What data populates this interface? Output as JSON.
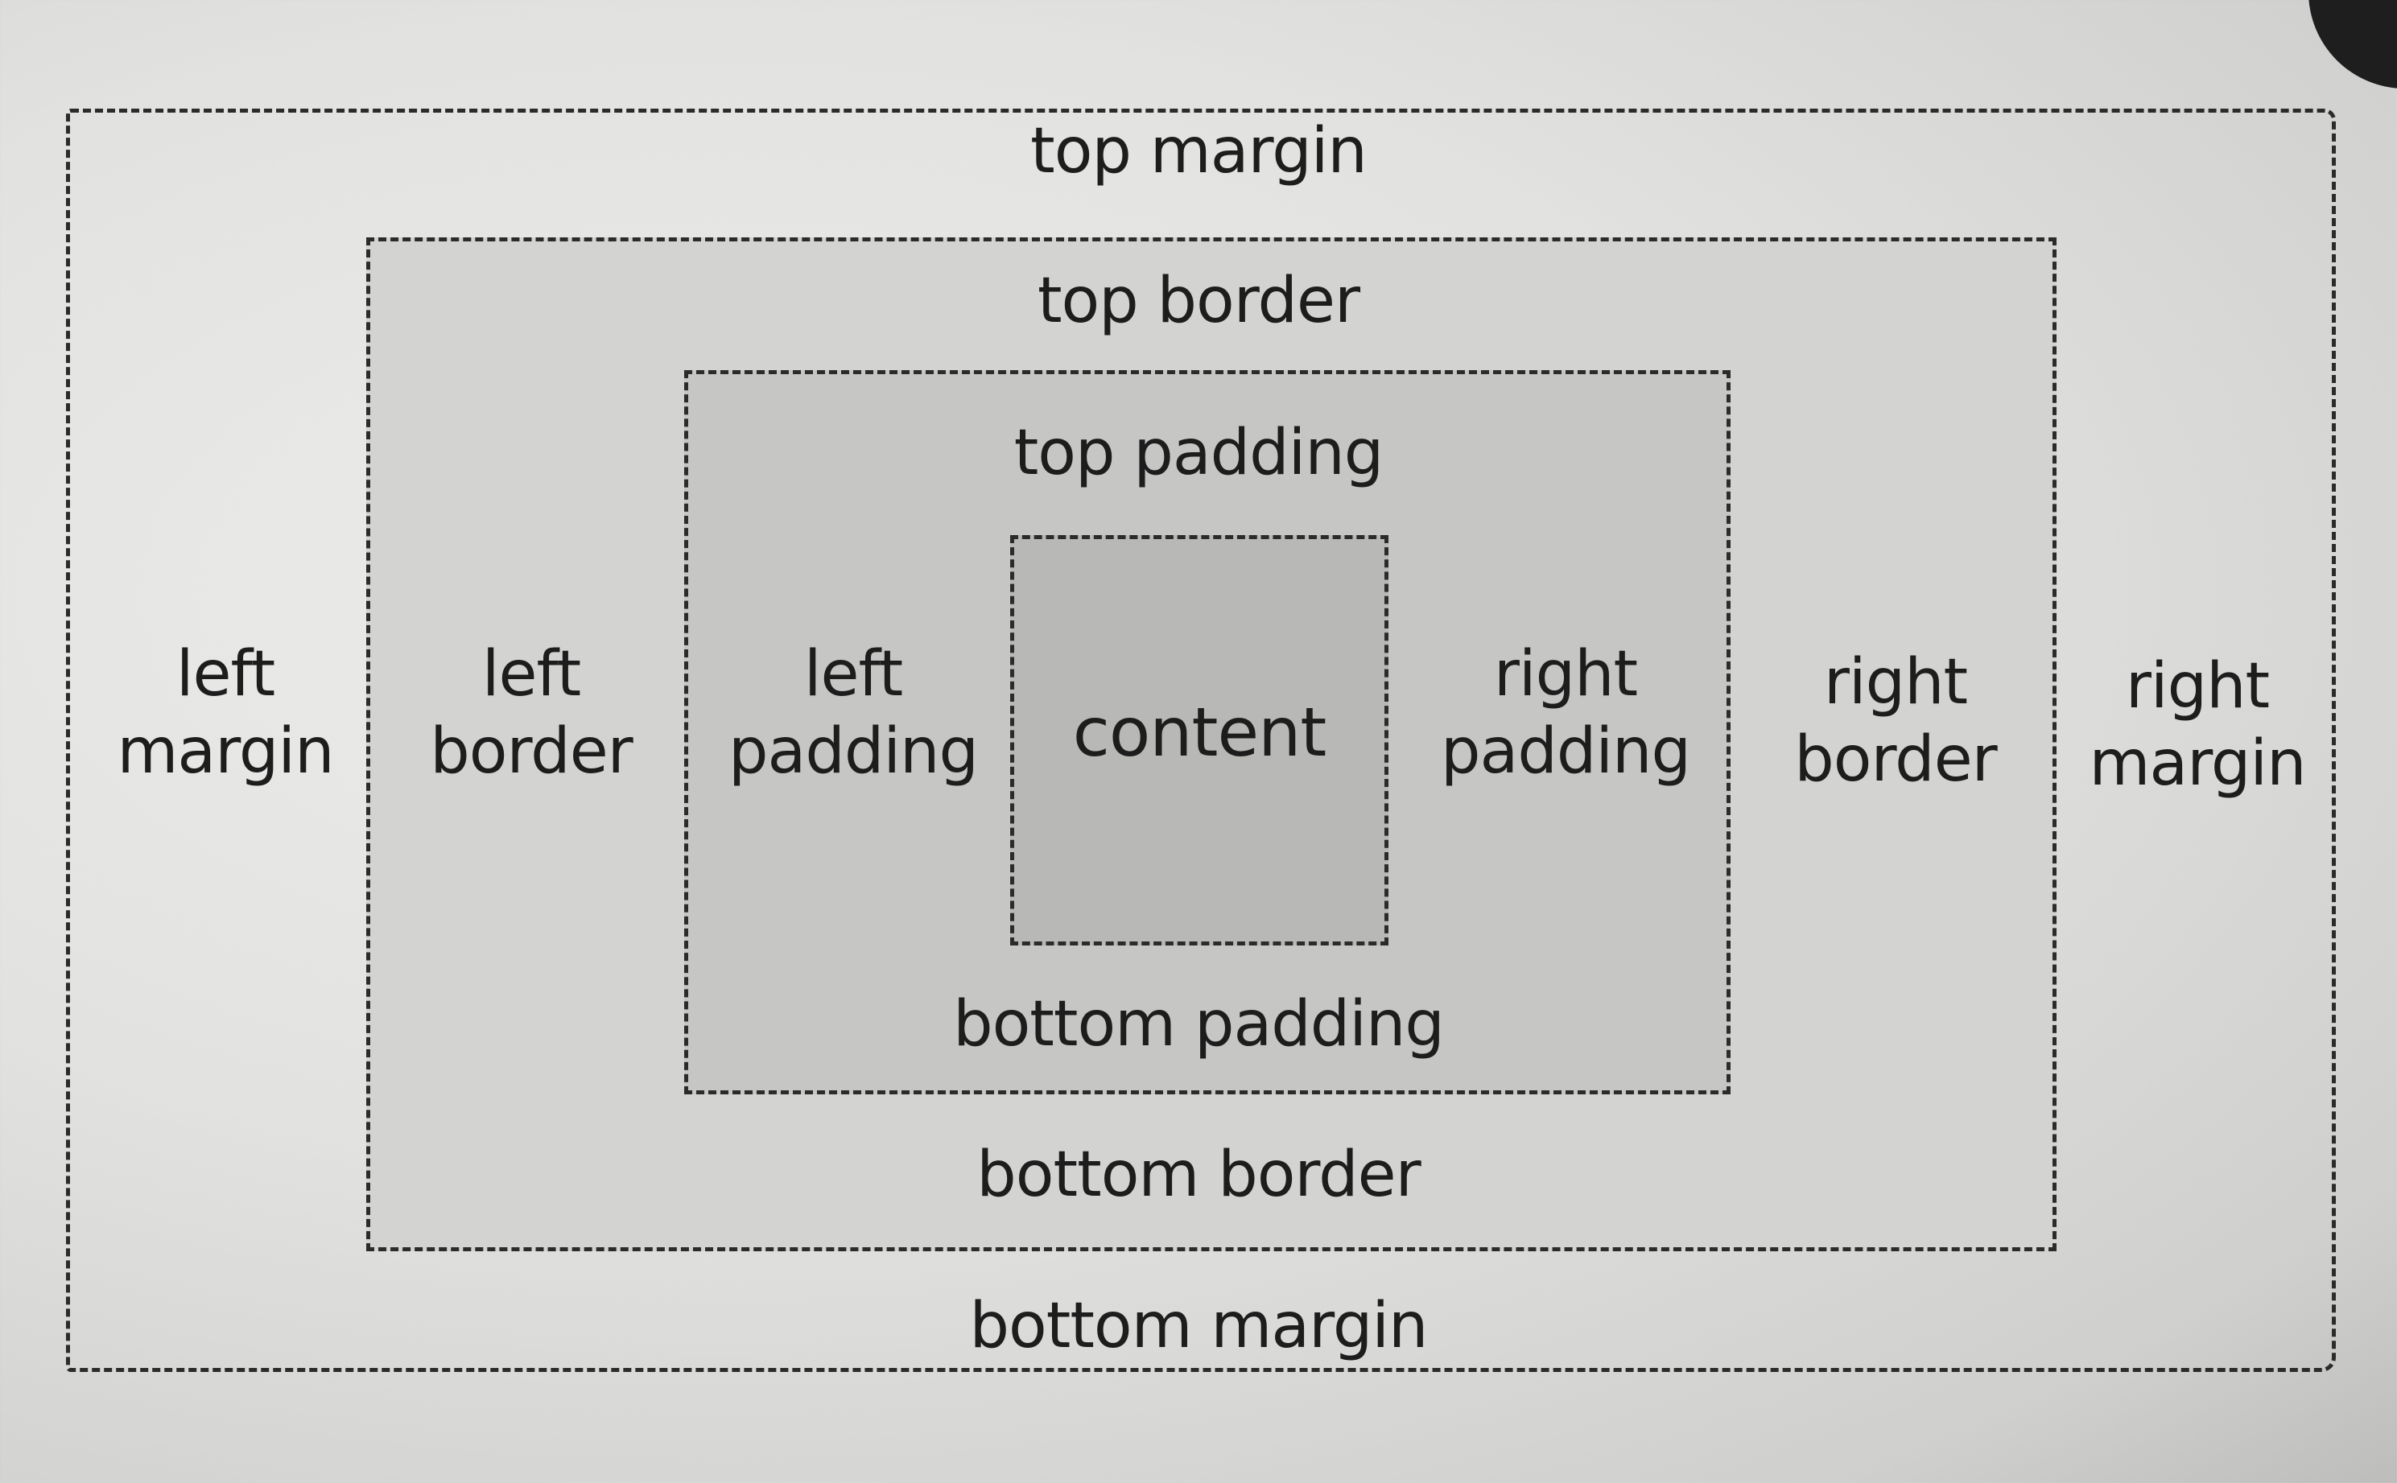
{
  "diagram": {
    "labels": {
      "top_margin": "top margin",
      "bottom_margin": "bottom margin",
      "left_margin": [
        "left",
        "margin"
      ],
      "right_margin": [
        "right",
        "margin"
      ],
      "top_border": "top border",
      "bottom_border": "bottom border",
      "left_border": [
        "left",
        "border"
      ],
      "right_border": [
        "right",
        "border"
      ],
      "top_padding": "top padding",
      "bottom_padding": "bottom padding",
      "left_padding": [
        "left",
        "padding"
      ],
      "right_padding": [
        "right",
        "padding"
      ],
      "content": "content"
    },
    "colors": {
      "border_fill": "#d3d3d1",
      "padding_fill": "#c6c6c4",
      "content_fill": "#b8b8b6",
      "line": "#2b2b2b",
      "text": "#1d1d1d"
    }
  }
}
